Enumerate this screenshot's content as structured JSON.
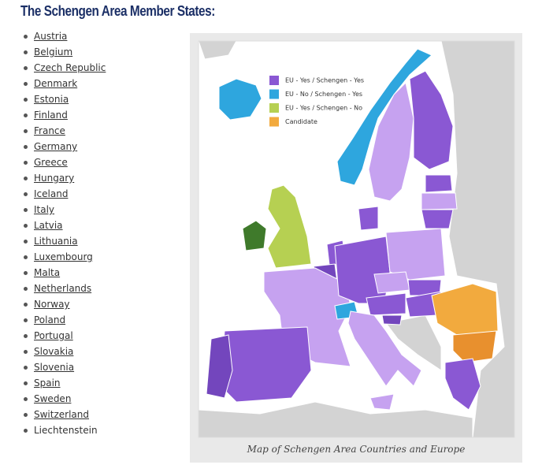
{
  "header": {
    "title": "The Schengen Area Member States:"
  },
  "list": {
    "links": [
      "Austria",
      "Belgium",
      "Czech Republic",
      "Denmark",
      "Estonia",
      "Finland",
      "France",
      "Germany",
      "Greece",
      "Hungary",
      "Iceland",
      "Italy",
      "Latvia",
      "Lithuania",
      "Luxembourg",
      "Malta",
      "Netherlands",
      "Norway",
      "Poland",
      "Portugal",
      "Slovakia",
      "Slovenia",
      "Spain",
      "Sweden",
      "Switzerland"
    ],
    "plain": [
      "Liechtenstein"
    ]
  },
  "map": {
    "legend": [
      {
        "label": "EU - Yes / Schengen - Yes",
        "color": "#8a58d3"
      },
      {
        "label": "EU - No / Schengen - Yes",
        "color": "#2ea6de"
      },
      {
        "label": "EU - Yes / Schengen - No",
        "color": "#b6d052"
      },
      {
        "label": "Candidate",
        "color": "#f2aa3e"
      }
    ],
    "caption": "Map of Schengen Area Countries and Europe"
  }
}
